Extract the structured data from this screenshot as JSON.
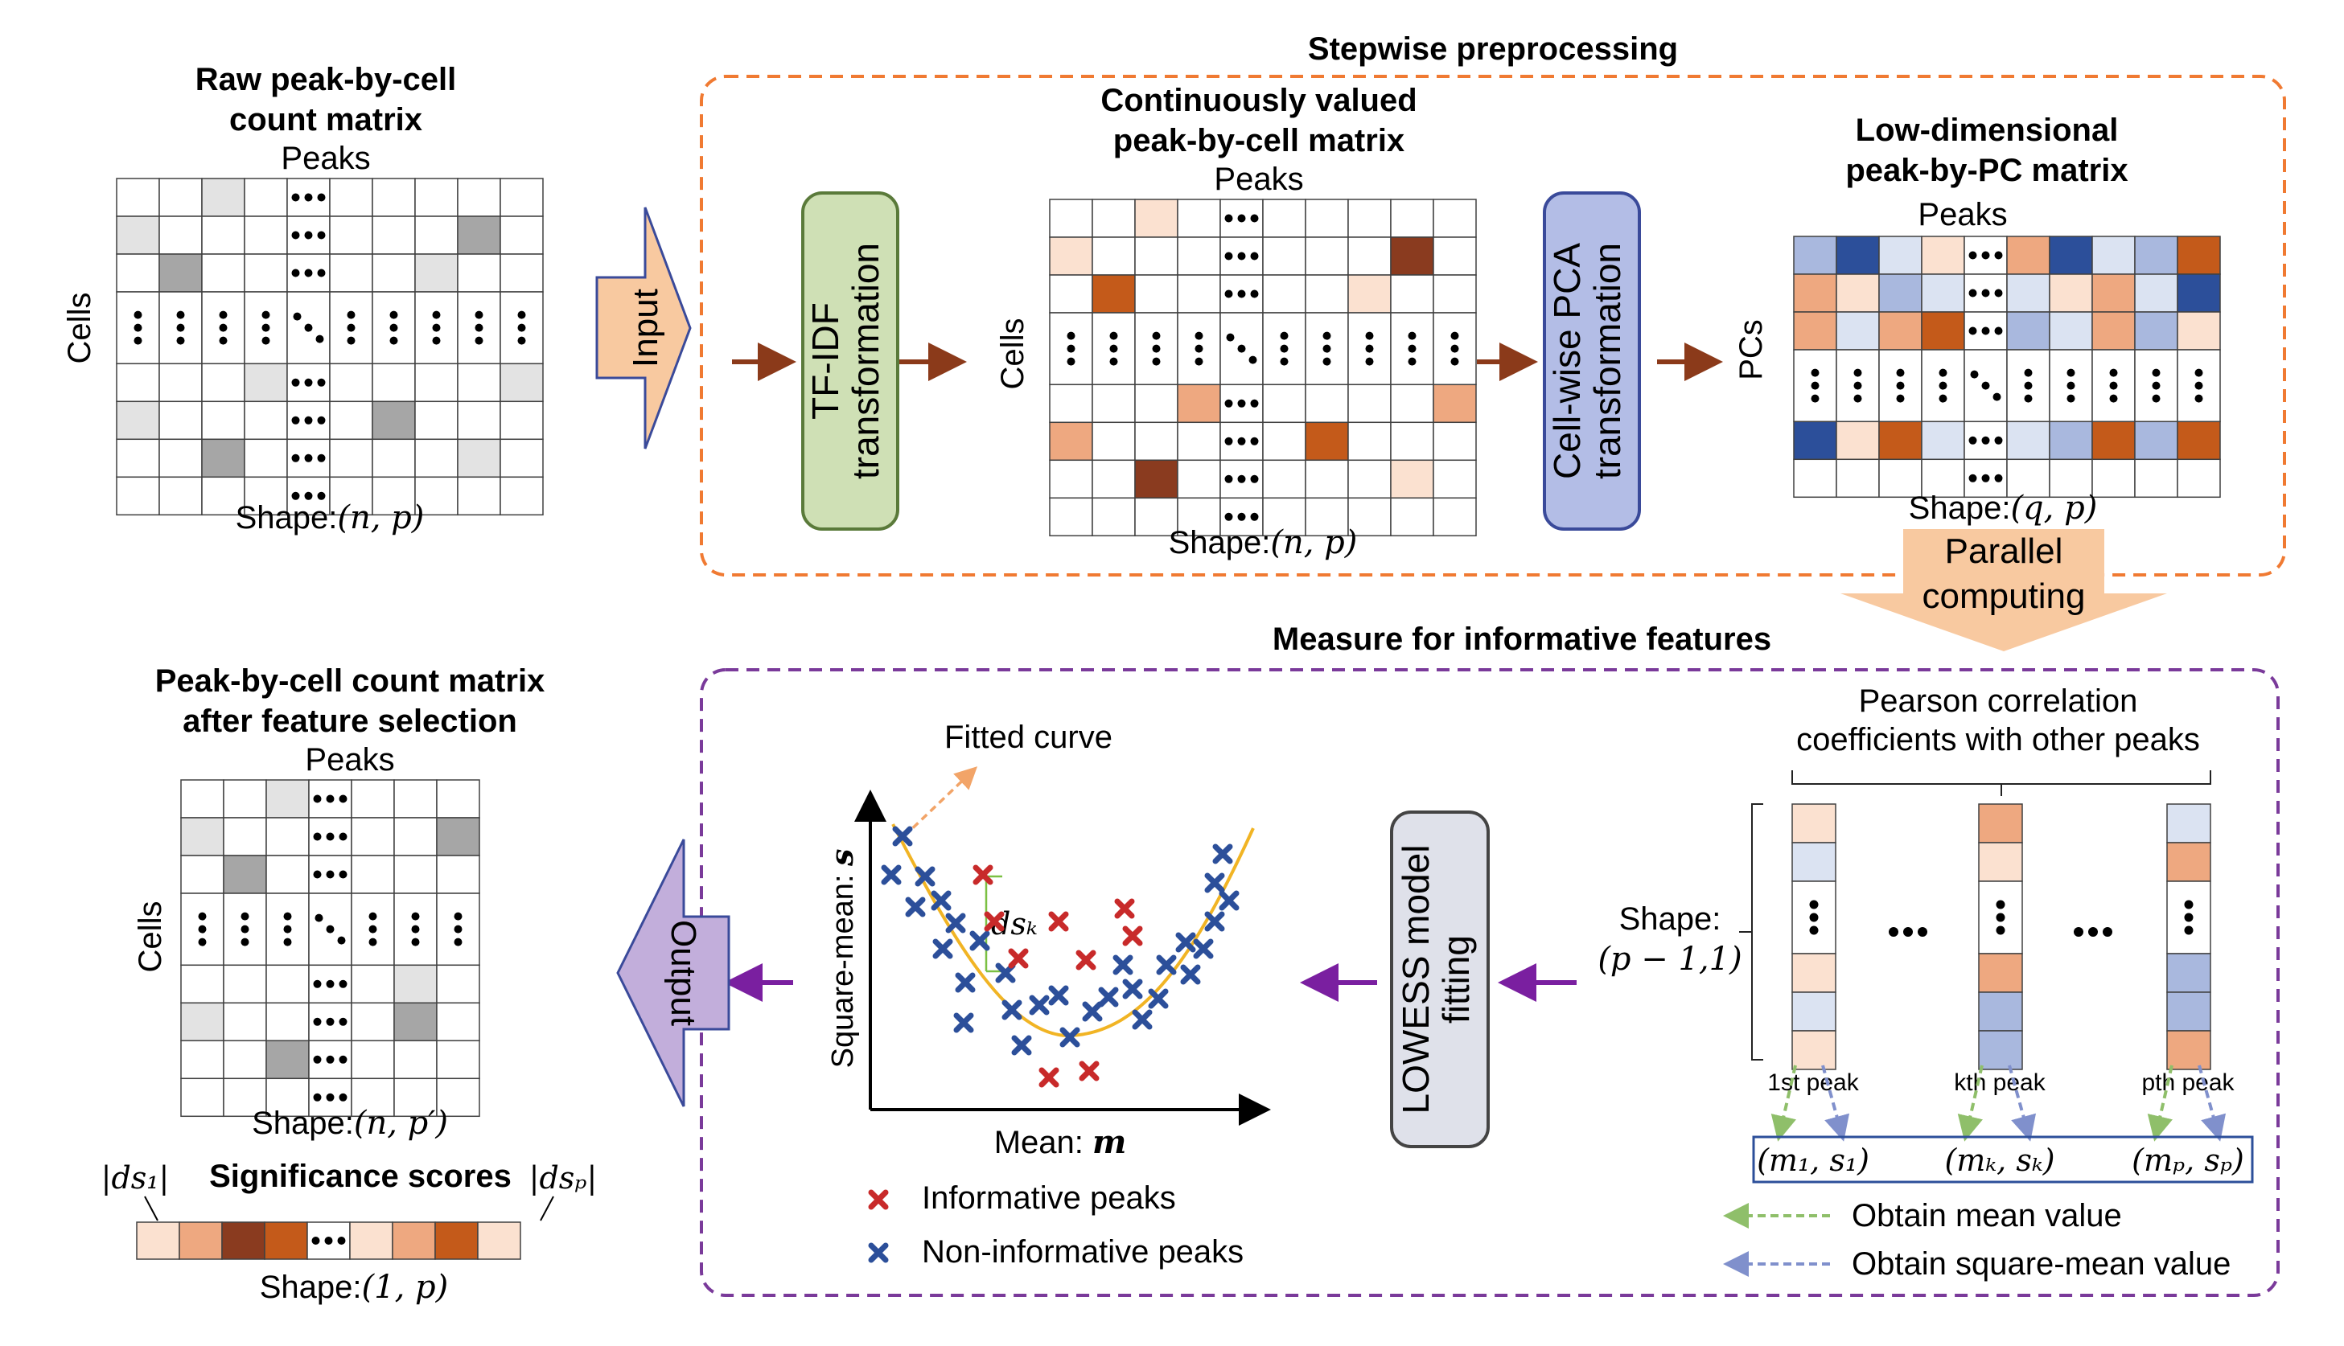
{
  "colors": {
    "orange_border": "#f07a32",
    "purple_border": "#7a3a9a",
    "brown_arrow": "#8b3a1a",
    "purple_arrow": "#7a1fa0",
    "tfidf_fill": "#cfe0b5",
    "tfidf_border": "#5a7a3a",
    "pca_fill": "#b3bde6",
    "pca_border": "#3a4a9a",
    "lowess_fill": "#dfe1ea",
    "lowess_border": "#444444",
    "input_fill": "#f8c9a0",
    "output_fill": "#c2aedb",
    "curve": "#f1b424",
    "informative": "#c82a2a",
    "non_informative": "#2c4f9a",
    "mean_arrow": "#8fbf6a",
    "square_mean_arrow": "#8090cc",
    "gray_light": "#e3e3e3",
    "gray_dark": "#a6a6a6"
  },
  "stepwise": {
    "title": "Stepwise preprocessing",
    "input_label": "Input",
    "raw": {
      "title_line1": "Raw peak-by-cell",
      "title_line2": "count matrix",
      "col_label": "Peaks",
      "row_label": "Cells",
      "shape_prefix": "Shape:",
      "shape_math": "(n, p)"
    },
    "tfidf": {
      "line1": "TF-IDF",
      "line2": "transformation"
    },
    "continuous": {
      "title_line1": "Continuously valued",
      "title_line2": "peak-by-cell matrix",
      "col_label": "Peaks",
      "row_label": "Cells",
      "shape_prefix": "Shape:",
      "shape_math": "(n, p)"
    },
    "pca": {
      "line1": "Cell-wise PCA",
      "line2": "transformation"
    },
    "lowdim": {
      "title_line1": "Low-dimensional",
      "title_line2": "peak-by-PC matrix",
      "col_label": "Peaks",
      "row_label": "PCs",
      "shape_prefix": "Shape:",
      "shape_math": "(q, p)"
    },
    "parallel": {
      "line1": "Parallel",
      "line2": "computing"
    }
  },
  "measure": {
    "title": "Measure for informative features",
    "pearson": {
      "line1": "Pearson correlation",
      "line2": "coefficients with other peaks"
    },
    "shape_line1": "Shape:",
    "shape_line2": "(p − 1,1)",
    "peak_labels": [
      "1st peak",
      "kth peak",
      "pth peak"
    ],
    "pairs": [
      "(m₁, s₁)",
      "(mₖ, sₖ)",
      "(mₚ, sₚ)"
    ],
    "legend_mean": "Obtain mean value",
    "legend_square_mean": "Obtain square-mean value",
    "lowess": {
      "line1": "LOWESS model",
      "line2": "fitting"
    },
    "plot": {
      "fitted_curve": "Fitted curve",
      "ylabel_text": "Square-mean: ",
      "ylabel_sym": "s",
      "xlabel_text": "Mean: ",
      "xlabel_sym": "m",
      "ds_label": "dsₖ",
      "legend_informative": "Informative peaks",
      "legend_non_informative": "Non-informative peaks"
    }
  },
  "output": {
    "label": "Output",
    "title_line1": "Peak-by-cell count matrix",
    "title_line2": "after feature selection",
    "col_label": "Peaks",
    "row_label": "Cells",
    "shape_prefix": "Shape:",
    "shape_math": "(n, p′)",
    "scores_title": "Significance scores",
    "score_left": "|ds₁|",
    "score_right": "|dsₚ|",
    "scores_shape_prefix": "Shape:",
    "scores_shape_math": "(1, p)"
  }
}
